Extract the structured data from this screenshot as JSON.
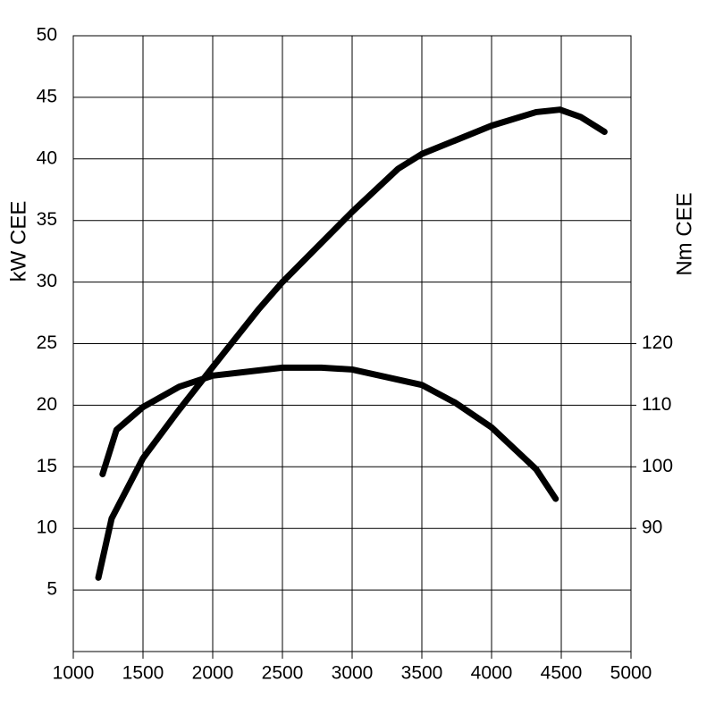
{
  "chart_data": {
    "type": "line",
    "ylabel": "kW  CEE",
    "y2label": "Nm  CEE",
    "xlim": [
      1000,
      5000
    ],
    "xticks": [
      1000,
      1500,
      2000,
      2500,
      3000,
      3500,
      4000,
      4500,
      5000
    ],
    "ylim": [
      0,
      50
    ],
    "yticks": [
      5,
      10,
      15,
      20,
      25,
      30,
      35,
      40,
      45,
      50
    ],
    "y2lim": [
      70,
      170
    ],
    "y2ticks": [
      90,
      100,
      110,
      120
    ],
    "grid": true,
    "series": [
      {
        "color": "#000000",
        "x": [
          1180,
          1275,
          1500,
          1750,
          2000,
          2330,
          2500,
          3000,
          3330,
          3500,
          4000,
          4320,
          4490,
          4640,
          4810
        ],
        "values": [
          6,
          10.8,
          15.7,
          19.5,
          23.1,
          27.8,
          30,
          35.7,
          39.2,
          40.4,
          42.7,
          43.8,
          44,
          43.4,
          42.2
        ]
      },
      {
        "color": "#000000",
        "axis": "y2",
        "x": [
          1210,
          1310,
          1500,
          1760,
          2000,
          2500,
          2780,
          3000,
          3500,
          3740,
          4000,
          4320,
          4460
        ],
        "values": [
          98.8,
          106,
          109.7,
          113,
          114.8,
          116.1,
          116.1,
          115.8,
          113.3,
          110.4,
          106.4,
          99.6,
          94.8
        ]
      }
    ]
  }
}
